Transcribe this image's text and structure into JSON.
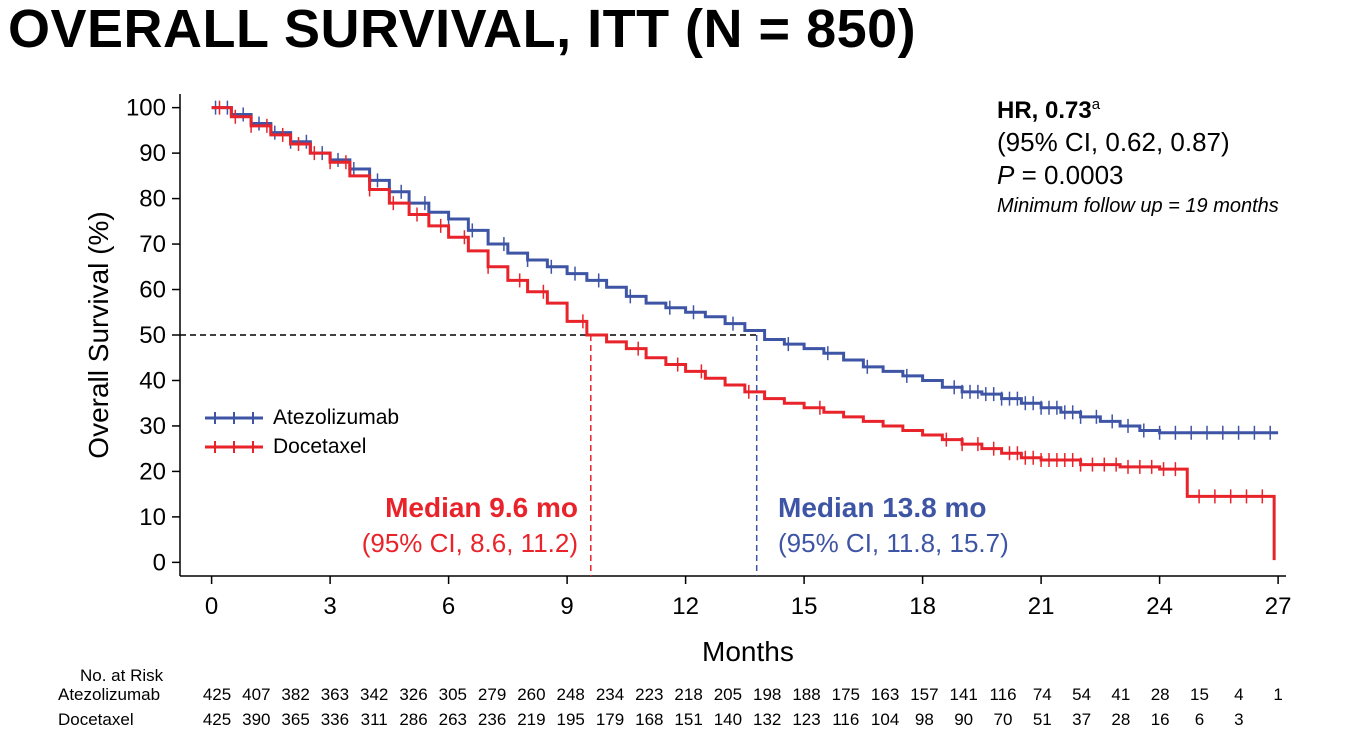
{
  "title": "OVERALL SURVIVAL, ITT (N = 850)",
  "stats": {
    "hr_label": "HR, 0.73",
    "hr_superscript": "a",
    "ci": "(95% CI, 0.62, 0.87)",
    "p_letter": "P",
    "p_value": " = 0.0003",
    "followup": "Minimum follow up = 19 months"
  },
  "medians": {
    "docetaxel": {
      "label": "Median 9.6 mo",
      "ci": "(95% CI, 8.6, 11.2)",
      "value": 9.6
    },
    "atezolizumab": {
      "label": "Median 13.8 mo",
      "ci": "(95% CI, 11.8, 15.7)",
      "value": 13.8
    }
  },
  "risk_table": {
    "title": "No. at Risk",
    "rows": [
      {
        "name": "Atezolizumab",
        "values": [
          "425",
          "407",
          "382",
          "363",
          "342",
          "326",
          "305",
          "279",
          "260",
          "248",
          "234",
          "223",
          "218",
          "205",
          "198",
          "188",
          "175",
          "163",
          "157",
          "141",
          "116",
          "74",
          "54",
          "41",
          "28",
          "15",
          "4",
          "1"
        ]
      },
      {
        "name": "Docetaxel",
        "values": [
          "425",
          "390",
          "365",
          "336",
          "311",
          "286",
          "263",
          "236",
          "219",
          "195",
          "179",
          "168",
          "151",
          "140",
          "132",
          "123",
          "116",
          "104",
          "98",
          "90",
          "70",
          "51",
          "37",
          "28",
          "16",
          "6",
          "3",
          ""
        ]
      }
    ]
  },
  "colors": {
    "atezolizumab": "#3e55a5",
    "docetaxel": "#e8232a",
    "reference": "#000000"
  },
  "chart_data": {
    "type": "line",
    "subtype": "kaplan-meier",
    "xlabel": "Months",
    "ylabel": "Overall Survival (%)",
    "xlim": [
      -0.8,
      27.2
    ],
    "ylim": [
      -3,
      103
    ],
    "xticks": [
      0,
      3,
      6,
      9,
      12,
      15,
      18,
      21,
      24,
      27
    ],
    "yticks": [
      0,
      10,
      20,
      30,
      40,
      50,
      60,
      70,
      80,
      90,
      100
    ],
    "reference_line_y": 50,
    "legend_position": "left",
    "series": [
      {
        "name": "Atezolizumab",
        "color": "#3e55a5",
        "points": [
          [
            0,
            100
          ],
          [
            0.5,
            98.5
          ],
          [
            1,
            96.5
          ],
          [
            1.5,
            94.5
          ],
          [
            2,
            92.5
          ],
          [
            2.5,
            90
          ],
          [
            3,
            88.5
          ],
          [
            3.5,
            86.5
          ],
          [
            4,
            84
          ],
          [
            4.5,
            81.5
          ],
          [
            5,
            79
          ],
          [
            5.5,
            77
          ],
          [
            6,
            75.5
          ],
          [
            6.5,
            73
          ],
          [
            7,
            70
          ],
          [
            7.5,
            68
          ],
          [
            8,
            66.5
          ],
          [
            8.5,
            65
          ],
          [
            9,
            63.5
          ],
          [
            9.5,
            62
          ],
          [
            10,
            60.5
          ],
          [
            10.5,
            58.5
          ],
          [
            11,
            57
          ],
          [
            11.5,
            56
          ],
          [
            12,
            55
          ],
          [
            12.5,
            54
          ],
          [
            13,
            52.5
          ],
          [
            13.5,
            51
          ],
          [
            14,
            49
          ],
          [
            14.5,
            48
          ],
          [
            15,
            47
          ],
          [
            15.5,
            46
          ],
          [
            16,
            44.5
          ],
          [
            16.5,
            43
          ],
          [
            17,
            42
          ],
          [
            17.5,
            41
          ],
          [
            18,
            40
          ],
          [
            18.5,
            38.5
          ],
          [
            19,
            37.5
          ],
          [
            19.5,
            37
          ],
          [
            20,
            36
          ],
          [
            20.5,
            35
          ],
          [
            21,
            34
          ],
          [
            21.5,
            33
          ],
          [
            22,
            32
          ],
          [
            22.5,
            31
          ],
          [
            23,
            30
          ],
          [
            23.5,
            29
          ],
          [
            24,
            28.5
          ],
          [
            25,
            28.5
          ],
          [
            26,
            28.5
          ],
          [
            27,
            28.5
          ]
        ],
        "censor_x": [
          0.1,
          0.4,
          0.8,
          1.2,
          1.6,
          2.0,
          2.4,
          2.8,
          3.2,
          3.6,
          4.2,
          4.8,
          5.4,
          6.0,
          6.6,
          7.4,
          8.0,
          8.6,
          9.2,
          9.8,
          10.6,
          11.6,
          12.2,
          13.2,
          14.6,
          15.6,
          16.6,
          17.6,
          18.8,
          19.0,
          19.2,
          19.4,
          19.6,
          19.8,
          20.0,
          20.2,
          20.4,
          20.6,
          20.8,
          21.0,
          21.2,
          21.4,
          21.6,
          21.8,
          22.0,
          22.4,
          22.8,
          23.2,
          23.6,
          24.0,
          24.4,
          24.8,
          25.2,
          25.6,
          26.0,
          26.4,
          26.8
        ]
      },
      {
        "name": "Docetaxel",
        "color": "#e8232a",
        "points": [
          [
            0,
            100
          ],
          [
            0.5,
            98
          ],
          [
            1,
            96
          ],
          [
            1.5,
            94
          ],
          [
            2,
            92
          ],
          [
            2.5,
            90
          ],
          [
            3,
            88
          ],
          [
            3.5,
            85
          ],
          [
            4,
            82
          ],
          [
            4.5,
            79
          ],
          [
            5,
            76.5
          ],
          [
            5.5,
            74
          ],
          [
            6,
            71.5
          ],
          [
            6.5,
            68.5
          ],
          [
            7,
            65
          ],
          [
            7.5,
            62
          ],
          [
            8,
            59.5
          ],
          [
            8.5,
            57
          ],
          [
            9,
            53
          ],
          [
            9.5,
            50
          ],
          [
            10,
            48.5
          ],
          [
            10.5,
            47
          ],
          [
            11,
            45
          ],
          [
            11.5,
            43.5
          ],
          [
            12,
            42
          ],
          [
            12.5,
            40.5
          ],
          [
            13,
            39
          ],
          [
            13.5,
            37.5
          ],
          [
            14,
            36
          ],
          [
            14.5,
            35
          ],
          [
            15,
            34
          ],
          [
            15.5,
            33
          ],
          [
            16,
            32
          ],
          [
            16.5,
            31
          ],
          [
            17,
            30
          ],
          [
            17.5,
            29
          ],
          [
            18,
            28
          ],
          [
            18.5,
            27
          ],
          [
            19,
            26
          ],
          [
            19.5,
            25
          ],
          [
            20,
            24
          ],
          [
            20.5,
            23
          ],
          [
            21,
            22.5
          ],
          [
            22,
            21.5
          ],
          [
            23,
            21
          ],
          [
            24,
            20.5
          ],
          [
            24.7,
            20.5
          ],
          [
            24.7,
            14.5
          ],
          [
            25.5,
            14.5
          ],
          [
            26.3,
            14.5
          ],
          [
            26.9,
            14.5
          ],
          [
            26.9,
            0.5
          ]
        ],
        "censor_x": [
          0.2,
          0.6,
          1.0,
          1.4,
          1.8,
          2.2,
          2.6,
          3.0,
          3.4,
          4.0,
          4.6,
          5.2,
          5.8,
          6.4,
          7.0,
          7.8,
          8.4,
          9.4,
          10.8,
          11.8,
          12.4,
          13.6,
          15.4,
          18.6,
          19.0,
          19.4,
          19.8,
          20.2,
          20.4,
          20.6,
          20.8,
          21.0,
          21.2,
          21.4,
          21.6,
          21.8,
          22.0,
          22.3,
          22.6,
          22.9,
          23.2,
          23.5,
          23.8,
          24.1,
          24.4,
          25.0,
          25.4,
          25.8,
          26.2,
          26.6
        ]
      }
    ]
  }
}
